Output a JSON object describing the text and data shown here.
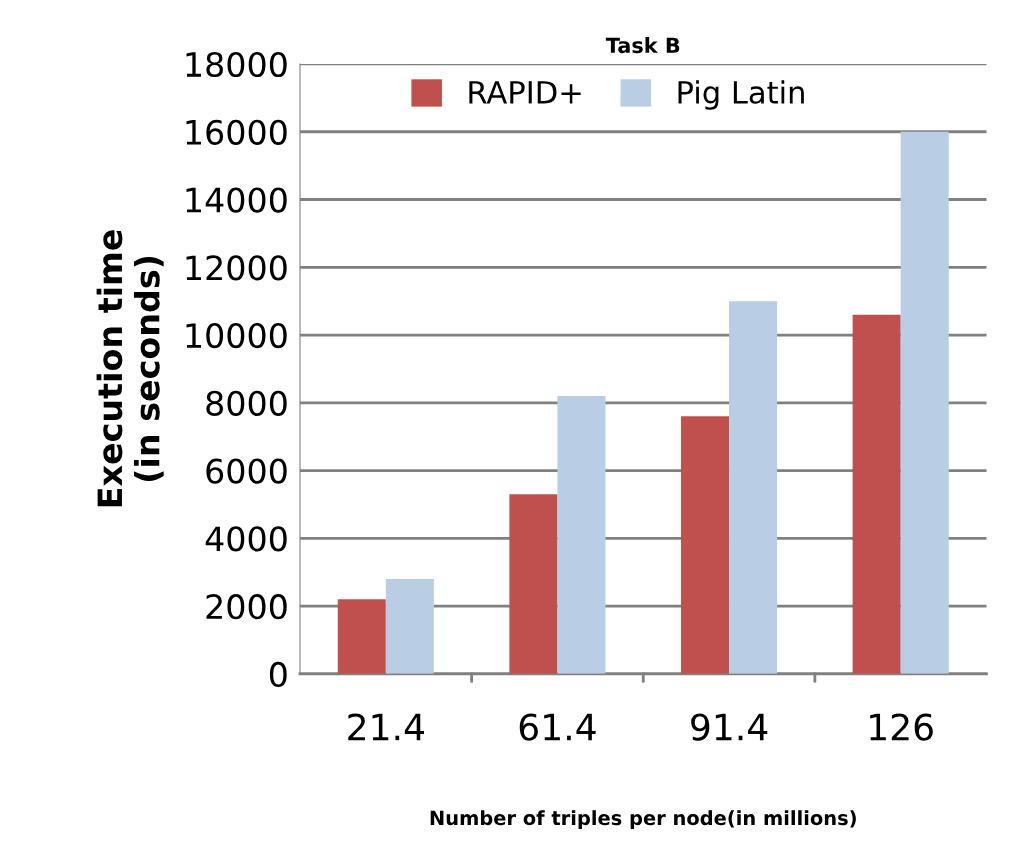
{
  "chart_data": {
    "type": "bar",
    "title": "Task B",
    "xlabel": "Number of triples per node(in millions)",
    "ylabel": "Execution time\n(in seconds)",
    "categories": [
      "21.4",
      "61.4",
      "91.4",
      "126"
    ],
    "series": [
      {
        "name": "RAPID+",
        "color": "#c0504d",
        "values": [
          2200,
          5300,
          7600,
          10600
        ]
      },
      {
        "name": "Pig Latin",
        "color": "#b9cde5",
        "values": [
          2800,
          8200,
          11000,
          16000
        ]
      }
    ],
    "ylim": [
      0,
      18000
    ],
    "yticks": [
      0,
      2000,
      4000,
      6000,
      8000,
      10000,
      12000,
      14000,
      16000,
      18000
    ],
    "grid": "y",
    "legend": "top"
  }
}
